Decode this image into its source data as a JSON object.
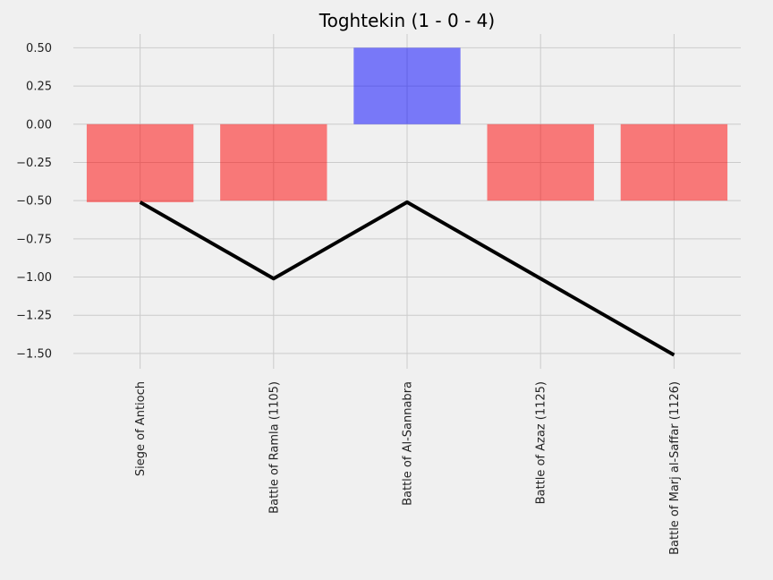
{
  "chart_data": {
    "type": "bar",
    "title": "Toghtekin (1 - 0 - 4)",
    "xlabel": "",
    "ylabel": "",
    "categories": [
      "Siege of Antioch",
      "Battle of Ramla (1105)",
      "Battle of Al-Sannabra",
      "Battle of Azaz (1125)",
      "Battle of Marj al-Saffar (1126)"
    ],
    "values": [
      -0.51,
      -0.5,
      0.5,
      -0.5,
      -0.5
    ],
    "bar_colors": [
      "#ff0000",
      "#ff0000",
      "#0000ff",
      "#ff0000",
      "#ff0000"
    ],
    "bar_alpha": 0.5,
    "line": {
      "color": "#000000",
      "values": [
        -0.51,
        -1.01,
        -0.51,
        -1.01,
        -1.51
      ]
    },
    "ylim": [
      -1.6,
      0.59
    ],
    "yticks": [
      0.5,
      0.25,
      0.0,
      -0.25,
      -0.5,
      -0.75,
      -1.0,
      -1.25,
      -1.5
    ],
    "ytick_labels": [
      "0.50",
      "0.25",
      "0.00",
      "−0.25",
      "−0.50",
      "−0.75",
      "−1.00",
      "−1.25",
      "−1.50"
    ],
    "grid": true
  }
}
